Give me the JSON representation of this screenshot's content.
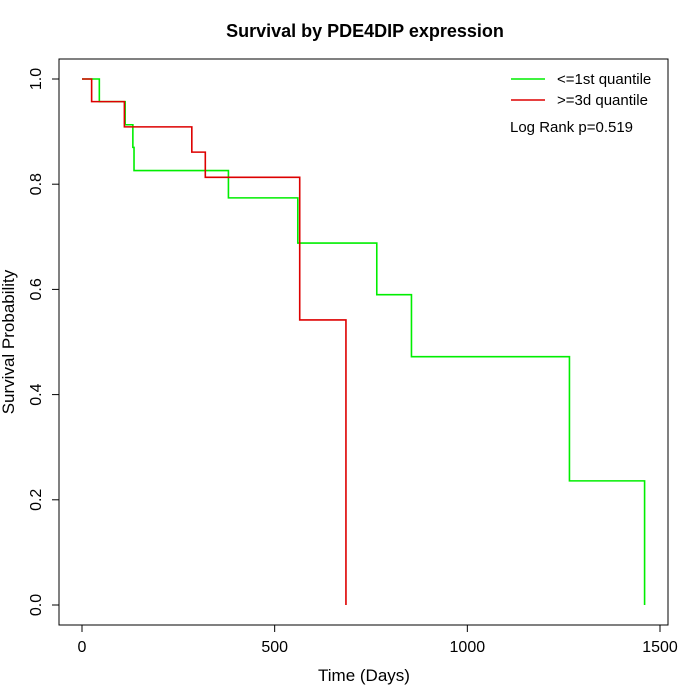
{
  "chart_data": {
    "type": "line",
    "title": "Survival by PDE4DIP expression",
    "xlabel": "Time (Days)",
    "ylabel": "Survival Probability",
    "xlim": [
      0,
      1500
    ],
    "ylim": [
      0,
      1.0
    ],
    "x_ticks": [
      0,
      500,
      1000,
      1500
    ],
    "x_tick_labels": [
      "0",
      "500",
      "1000",
      "1500"
    ],
    "y_ticks": [
      0.0,
      0.2,
      0.4,
      0.6,
      0.8,
      1.0
    ],
    "y_tick_labels": [
      "0.0",
      "0.2",
      "0.4",
      "0.6",
      "0.8",
      "1.0"
    ],
    "legend_position": "top-right",
    "annotation": "Log Rank p=0.519",
    "series": [
      {
        "name": "<=1st quantile",
        "color": "#00ee00",
        "step": true,
        "x": [
          0,
          45,
          108,
          112,
          128,
          132,
          135,
          380,
          560,
          765,
          855,
          1265,
          1460
        ],
        "y": [
          1.0,
          0.957,
          0.957,
          0.913,
          0.913,
          0.87,
          0.826,
          0.774,
          0.688,
          0.59,
          0.472,
          0.236,
          0.0
        ]
      },
      {
        "name": ">=3d quantile",
        "color": "#dd0000",
        "step": true,
        "x": [
          0,
          25,
          110,
          285,
          320,
          565,
          685
        ],
        "y": [
          1.0,
          0.957,
          0.909,
          0.861,
          0.813,
          0.542,
          0.0
        ]
      }
    ]
  }
}
